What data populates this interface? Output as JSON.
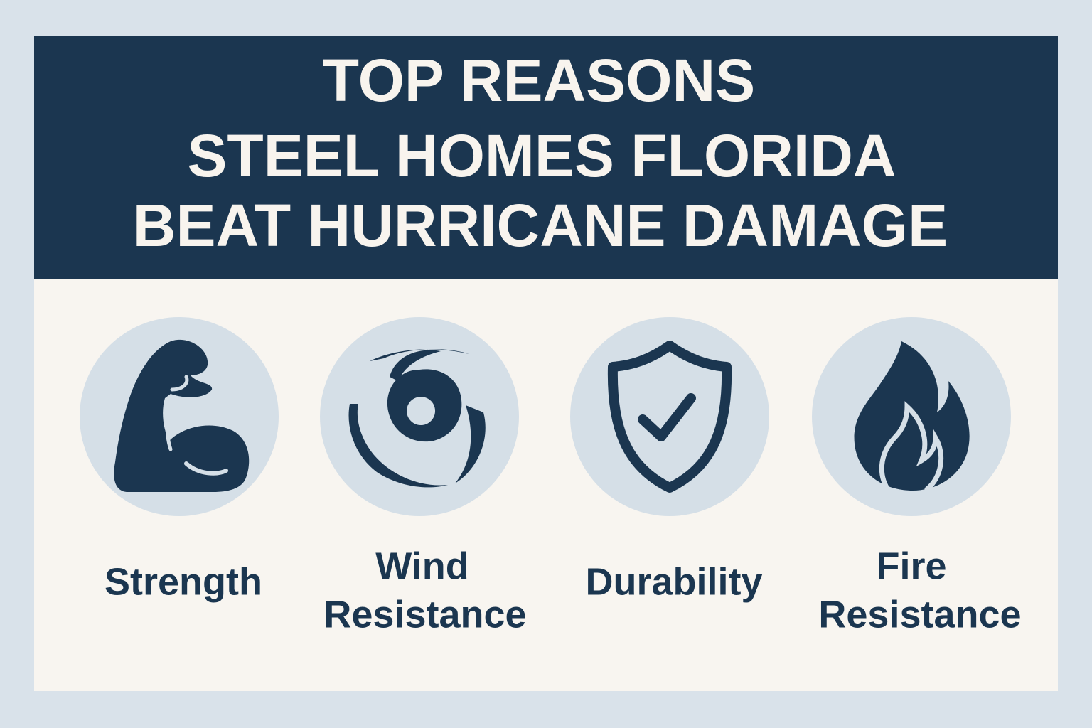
{
  "header": {
    "title_lines": [
      "TOP REASONS",
      "STEEL HOMES FLORIDA",
      "BEAT HURRICANE DAMAGE"
    ]
  },
  "items": [
    {
      "label_lines": [
        "Strength"
      ]
    },
    {
      "label_lines": [
        "Wind",
        "Resistance"
      ]
    },
    {
      "label_lines": [
        "Durability"
      ]
    },
    {
      "label_lines": [
        "Fire",
        "Resistance"
      ]
    }
  ]
}
